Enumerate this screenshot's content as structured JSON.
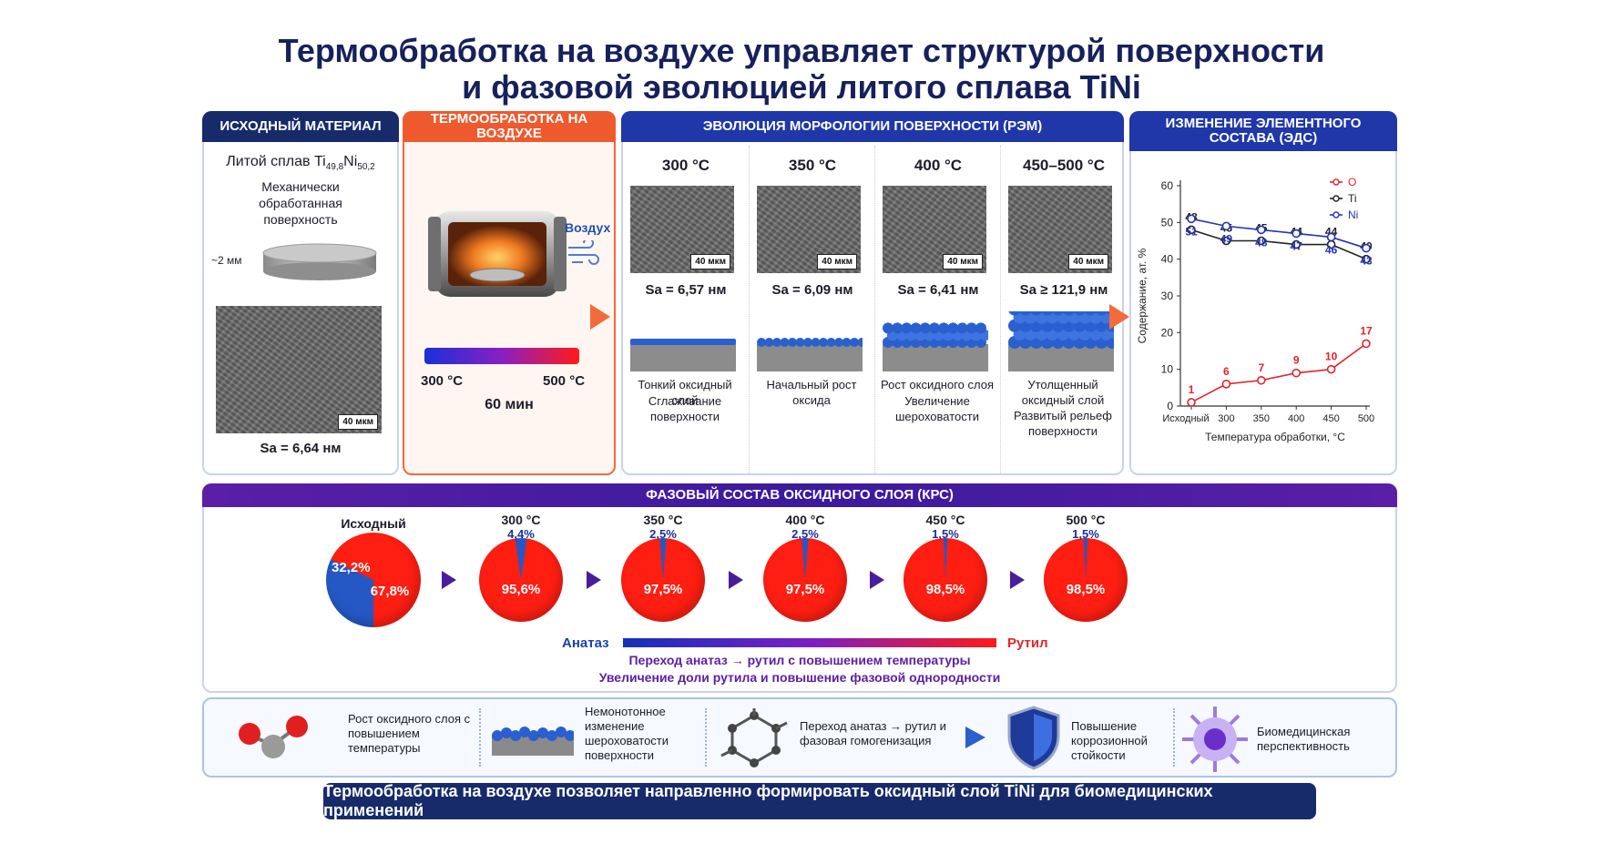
{
  "title": {
    "line1": "Термообработка на воздухе управляет структурой поверхности",
    "line2": "и фазовой эволюцией литого сплава TiNi"
  },
  "initial": {
    "header": "ИСХОДНЫЙ МАТЕРИАЛ",
    "alloy_prefix": "Литой сплав Ti",
    "ti_sub": "49,8",
    "ni": "Ni",
    "ni_sub": "50,2",
    "surface": "Механически обработанная поверхность",
    "thickness": "~2 мм",
    "scale": "40 мкм",
    "sa": "Sa = 6,64 нм"
  },
  "heat": {
    "header": "ТЕРМООБРАБОТКА НА ВОЗДУХЕ",
    "air": "Воздух",
    "t_min": "300 °C",
    "t_max": "500 °C",
    "time": "60 мин"
  },
  "sem": {
    "header": "ЭВОЛЮЦИЯ МОРФОЛОГИИ ПОВЕРХНОСТИ (РЭМ)",
    "scale": "40 мкм",
    "items": [
      {
        "temp": "300 °C",
        "sa": "Sa = 6,57 нм",
        "desc1": "Тонкий оксидный слой",
        "desc2": "Сглаживание поверхности"
      },
      {
        "temp": "350 °C",
        "sa": "Sa = 6,09 нм",
        "desc1": "Начальный рост оксида",
        "desc2": ""
      },
      {
        "temp": "400 °C",
        "sa": "Sa = 6,41 нм",
        "desc1": "Рост оксидного слоя",
        "desc2": "Увеличение шероховатости"
      },
      {
        "temp": "450–500 °C",
        "sa": "Sa ≥ 121,9 нм",
        "desc1": "Утолщенный оксидный слой",
        "desc2": "Развитый рельеф поверхности"
      }
    ]
  },
  "eds": {
    "header": "ИЗМЕНЕНИЕ ЭЛЕМЕНТНОГО СОСТАВА (ЭДС)"
  },
  "chart_data": {
    "type": "line",
    "categories": [
      "Исходный",
      "300",
      "350",
      "400",
      "450",
      "500"
    ],
    "series": [
      {
        "name": "O",
        "color": "#e0262b",
        "values": [
          1,
          6,
          7,
          9,
          10,
          17
        ]
      },
      {
        "name": "Ti",
        "color": "#222222",
        "values": [
          48,
          45,
          45,
          44,
          44,
          40
        ]
      },
      {
        "name": "Ni",
        "color": "#2433b8",
        "values": [
          51,
          49,
          48,
          47,
          46,
          43
        ]
      }
    ],
    "xlabel": "Температура обработки, °C",
    "ylabel": "Содержание, ат. %",
    "ylim": [
      0,
      60
    ],
    "yticks": [
      "0",
      "10",
      "20",
      "30",
      "40",
      "50",
      "60"
    ],
    "legend": "top-right",
    "grid": false
  },
  "phase": {
    "header": "ФАЗОВЫЙ СОСТАВ ОКСИДНОГО СЛОЯ (КРС)",
    "anatase_color": "#2558c4",
    "rutile_color": "#ff1e12",
    "pies": [
      {
        "top": "Исходный",
        "small": "",
        "anatase": 32.2,
        "anatase_label": "32,2%",
        "rutile_label": "67,8%"
      },
      {
        "top": "300 °C",
        "small": "4,4%",
        "anatase": 4.4,
        "anatase_label": "",
        "rutile_label": "95,6%"
      },
      {
        "top": "350 °C",
        "small": "2,5%",
        "anatase": 2.5,
        "anatase_label": "",
        "rutile_label": "97,5%"
      },
      {
        "top": "400 °C",
        "small": "2,5%",
        "anatase": 2.5,
        "anatase_label": "",
        "rutile_label": "97,5%"
      },
      {
        "top": "450 °C",
        "small": "1,5%",
        "anatase": 1.5,
        "anatase_label": "",
        "rutile_label": "98,5%"
      },
      {
        "top": "500 °C",
        "small": "1,5%",
        "anatase": 1.5,
        "anatase_label": "",
        "rutile_label": "98,5%"
      }
    ],
    "anatase": "Анатаз",
    "rutile": "Рутил",
    "note1": "Переход анатаз → рутил с повышением температуры",
    "note2": "Увеличение доли рутила и повышение фазовой однородности"
  },
  "summary": {
    "s1": "Рост оксидного слоя с повышением температуры",
    "s2": "Немонотонное изменение шероховатости поверхности",
    "s3": "Переход анатаз → рутил и фазовая гомогенизация",
    "s4": "Повышение коррозионной стойкости",
    "s5": "Биомедицинская перспективность"
  },
  "footer": "Термообработка на воздухе позволяет направленно формировать оксидный слой TiNi для биомедицинских применений"
}
